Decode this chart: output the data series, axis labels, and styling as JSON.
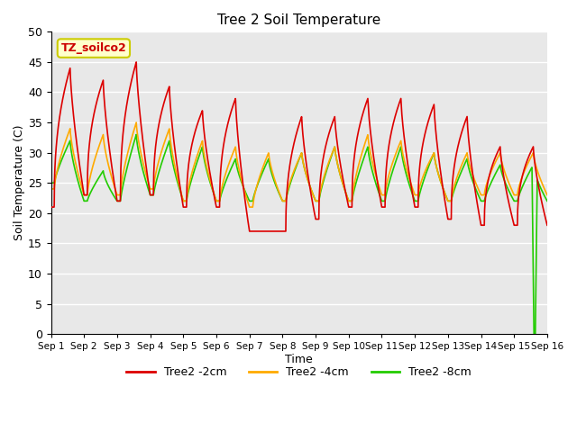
{
  "title": "Tree 2 Soil Temperature",
  "xlabel": "Time",
  "ylabel": "Soil Temperature (C)",
  "ylim": [
    0,
    50
  ],
  "xlim_days": 15,
  "annotation_text": "TZ_soilco2",
  "annotation_color": "#cc0000",
  "annotation_bg": "#ffffcc",
  "annotation_border": "#cccc00",
  "series": [
    {
      "label": "Tree2 -2cm",
      "color": "#dd0000",
      "lw": 1.2
    },
    {
      "label": "Tree2 -4cm",
      "color": "#ffaa00",
      "lw": 1.2
    },
    {
      "label": "Tree2 -8cm",
      "color": "#22cc00",
      "lw": 1.2
    }
  ],
  "bg_color": "#e8e8e8",
  "grid_color": "#ffffff",
  "yticks": [
    0,
    5,
    10,
    15,
    20,
    25,
    30,
    35,
    40,
    45,
    50
  ],
  "xtick_labels": [
    "Sep 1",
    "Sep 2",
    "Sep 3",
    "Sep 4",
    "Sep 5",
    "Sep 6",
    "Sep 7",
    "Sep 8",
    "Sep 9",
    "Sep 10",
    "Sep 11",
    "Sep 12",
    "Sep 13",
    "Sep 14",
    "Sep 15",
    "Sep 16"
  ]
}
